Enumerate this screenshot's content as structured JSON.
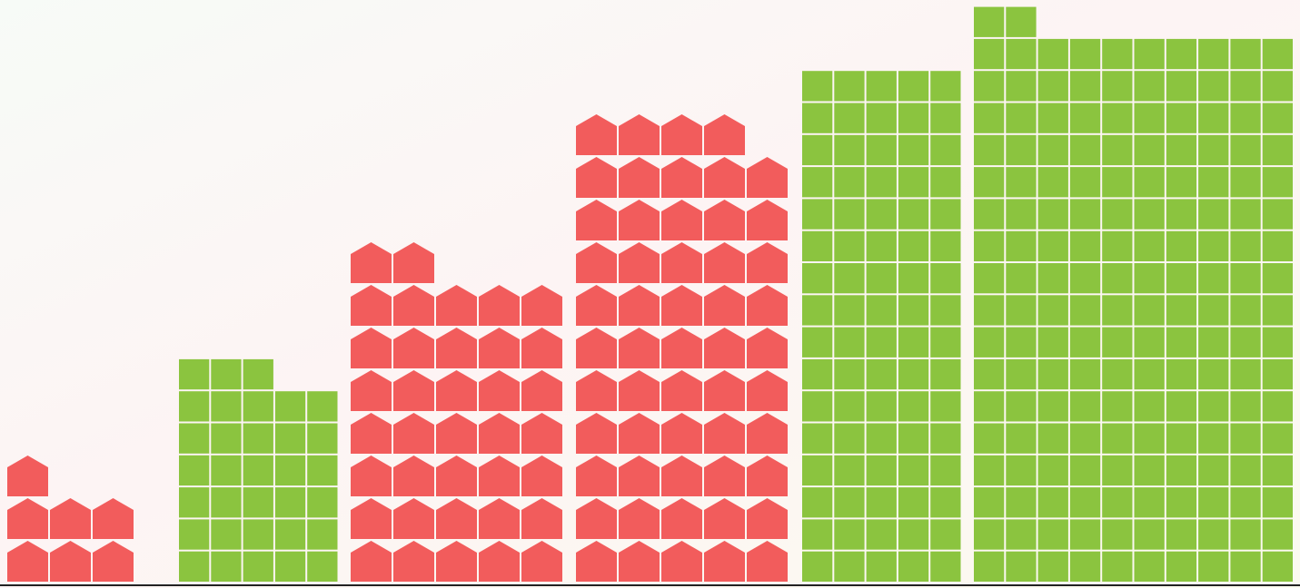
{
  "chart_data": {
    "type": "pictogram",
    "values": [
      7,
      33,
      37,
      54,
      80,
      172
    ],
    "colors": [
      "#f25c5c",
      "#8bc43f",
      "#f25c5c",
      "#f25c5c",
      "#8bc43f",
      "#8bc43f"
    ],
    "shapes": [
      "house",
      "square",
      "house",
      "house",
      "square",
      "square"
    ]
  }
}
